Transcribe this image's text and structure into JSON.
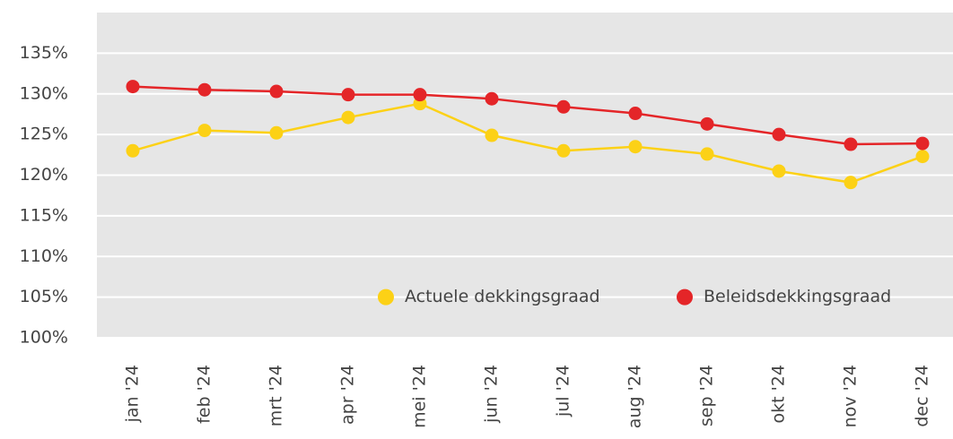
{
  "chart_data": {
    "type": "line",
    "categories": [
      "jan '24",
      "feb '24",
      "mrt '24",
      "apr '24",
      "mei '24",
      "jun '24",
      "jul '24",
      "aug '24",
      "sep '24",
      "okt '24",
      "nov '24",
      "dec '24"
    ],
    "series": [
      {
        "name": "Actuele dekkingsgraad",
        "color": "#fcd116",
        "values": [
          123.0,
          125.5,
          125.2,
          127.1,
          128.8,
          124.9,
          123.0,
          123.5,
          122.6,
          120.5,
          119.1,
          122.3
        ]
      },
      {
        "name": "Beleidsdekkingsgraad",
        "color": "#e42528",
        "values": [
          130.9,
          130.5,
          130.3,
          129.9,
          129.9,
          129.4,
          128.4,
          127.6,
          126.3,
          125.0,
          123.8,
          123.9
        ]
      }
    ],
    "ylim": [
      100,
      140
    ],
    "yticks": [
      {
        "value": 100,
        "label": "100%"
      },
      {
        "value": 105,
        "label": "105%"
      },
      {
        "value": 110,
        "label": "110%"
      },
      {
        "value": 115,
        "label": "115%"
      },
      {
        "value": 120,
        "label": "120%"
      },
      {
        "value": 125,
        "label": "125%"
      },
      {
        "value": 130,
        "label": "130%"
      },
      {
        "value": 135,
        "label": "135%"
      }
    ],
    "grid": true,
    "legend": "bottom-right"
  }
}
